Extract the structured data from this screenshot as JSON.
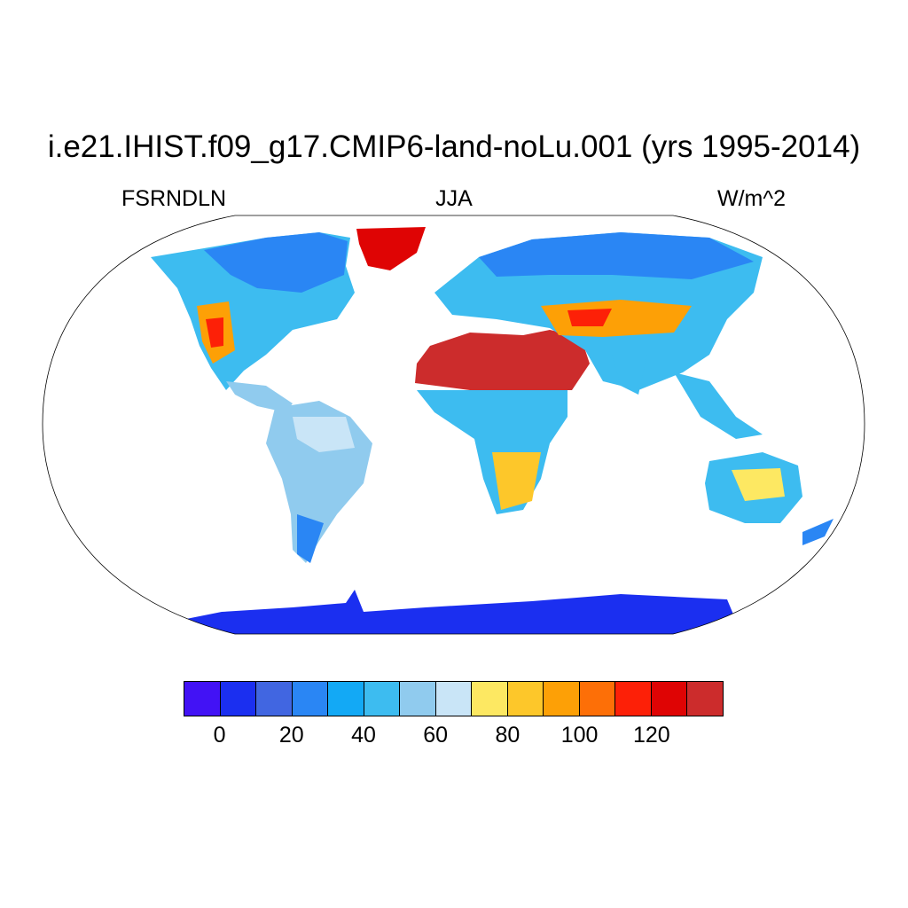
{
  "title": "i.e21.IHIST.f09_g17.CMIP6-land-noLu.001 (yrs 1995-2014)",
  "left_label": "FSRNDLN",
  "center_label": "JJA",
  "right_label": "W/m^2",
  "colorbar": {
    "colors": [
      "#4212f5",
      "#1b2ff0",
      "#4166e1",
      "#2a86f4",
      "#13a9f5",
      "#3dbcf0",
      "#90cbee",
      "#c9e5f7",
      "#fde862",
      "#fdc72a",
      "#fda006",
      "#fd6f07",
      "#fd2007",
      "#df0404",
      "#cc2c2c"
    ],
    "tick_labels": [
      "0",
      "20",
      "40",
      "60",
      "80",
      "100",
      "120"
    ]
  },
  "map_regions": [
    {
      "name": "north-america",
      "color": "#3dbcf0"
    },
    {
      "name": "greenland",
      "color": "#df0404"
    },
    {
      "name": "south-america",
      "color": "#90cbee"
    },
    {
      "name": "sahara-arabia",
      "color": "#cc2c2c"
    },
    {
      "name": "africa",
      "color": "#3dbcf0"
    },
    {
      "name": "eurasia",
      "color": "#3dbcf0"
    },
    {
      "name": "australia",
      "color": "#3dbcf0"
    },
    {
      "name": "antarctica",
      "color": "#1b2ff0"
    }
  ]
}
